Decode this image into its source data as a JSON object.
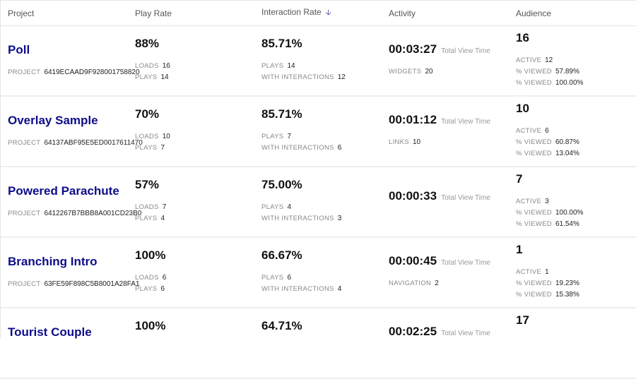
{
  "header": {
    "project": "Project",
    "play_rate": "Play Rate",
    "interaction_rate": "Interaction Rate",
    "activity": "Activity",
    "audience": "Audience"
  },
  "labels": {
    "project": "PROJECT",
    "loads": "LOADS",
    "plays": "PLAYS",
    "with_interactions": "WITH INTERACTIONS",
    "total_view_time": "Total View Time",
    "active": "ACTIVE",
    "viewed": "% VIEWED"
  },
  "accent": "#0d0d8a",
  "rows": [
    {
      "name": "Poll",
      "id": "6419ECAAD9F928001758820",
      "play_rate": "88%",
      "loads": "16",
      "plays": "14",
      "interaction_rate": "85.71%",
      "i_plays": "14",
      "with_interactions": "12",
      "time": "00:03:27",
      "activity_label": "WIDGETS",
      "activity_value": "20",
      "audience": "16",
      "active": "12",
      "viewed1": "57.89%",
      "viewed2": "100.00%"
    },
    {
      "name": "Overlay Sample",
      "id": "64137ABF95E5ED0017611470",
      "play_rate": "70%",
      "loads": "10",
      "plays": "7",
      "interaction_rate": "85.71%",
      "i_plays": "7",
      "with_interactions": "6",
      "time": "00:01:12",
      "activity_label": "LINKS",
      "activity_value": "10",
      "audience": "10",
      "active": "6",
      "viewed1": "60.87%",
      "viewed2": "13.04%"
    },
    {
      "name": "Powered Parachute",
      "id": "6412267B7BBB8A001CD23B0",
      "play_rate": "57%",
      "loads": "7",
      "plays": "4",
      "interaction_rate": "75.00%",
      "i_plays": "4",
      "with_interactions": "3",
      "time": "00:00:33",
      "activity_label": "",
      "activity_value": "",
      "audience": "7",
      "active": "3",
      "viewed1": "100.00%",
      "viewed2": "61.54%"
    },
    {
      "name": "Branching Intro",
      "id": "63FE59F898C5B8001A28FA1",
      "play_rate": "100%",
      "loads": "6",
      "plays": "6",
      "interaction_rate": "66.67%",
      "i_plays": "6",
      "with_interactions": "4",
      "time": "00:00:45",
      "activity_label": "NAVIGATION",
      "activity_value": "2",
      "audience": "1",
      "active": "1",
      "viewed1": "19.23%",
      "viewed2": "15.38%"
    },
    {
      "name": "Tourist Couple",
      "id": "",
      "play_rate": "100%",
      "loads": "",
      "plays": "",
      "interaction_rate": "64.71%",
      "i_plays": "",
      "with_interactions": "",
      "time": "00:02:25",
      "activity_label": "",
      "activity_value": "",
      "audience": "17",
      "active": "",
      "viewed1": "",
      "viewed2": ""
    }
  ]
}
